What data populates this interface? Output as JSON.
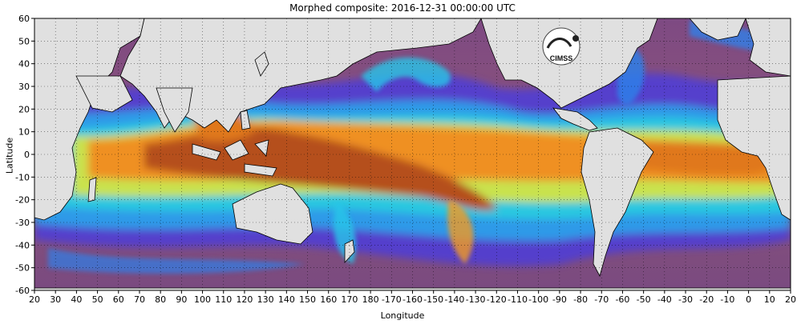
{
  "title": "Morphed composite: 2016-12-31 00:00:00 UTC",
  "xlabel": "Longitude",
  "ylabel": "Latitude",
  "logo_text": "CIMSS",
  "x_ticks": [
    "20",
    "30",
    "40",
    "50",
    "60",
    "70",
    "80",
    "90",
    "100",
    "110",
    "120",
    "130",
    "140",
    "150",
    "160",
    "170",
    "180",
    "-170",
    "-160",
    "-150",
    "-140",
    "-130",
    "-120",
    "-110",
    "-100",
    "-90",
    "-80",
    "-70",
    "-60",
    "-50",
    "-40",
    "-30",
    "-20",
    "-10",
    "0",
    "10",
    "20"
  ],
  "y_ticks": [
    "60",
    "50",
    "40",
    "30",
    "20",
    "10",
    "0",
    "-10",
    "-20",
    "-30",
    "-40",
    "-50",
    "-60"
  ],
  "colors": {
    "background_dry": "#8a4f7a",
    "land": "#e0e0e0",
    "coast": "#000000",
    "ramp": [
      "#7a4b8c",
      "#4d3cd9",
      "#2e7fe8",
      "#27c5e8",
      "#4fe0b0",
      "#b8e85a",
      "#f5d132",
      "#f39a1f",
      "#d8661a",
      "#a8440e"
    ]
  }
}
